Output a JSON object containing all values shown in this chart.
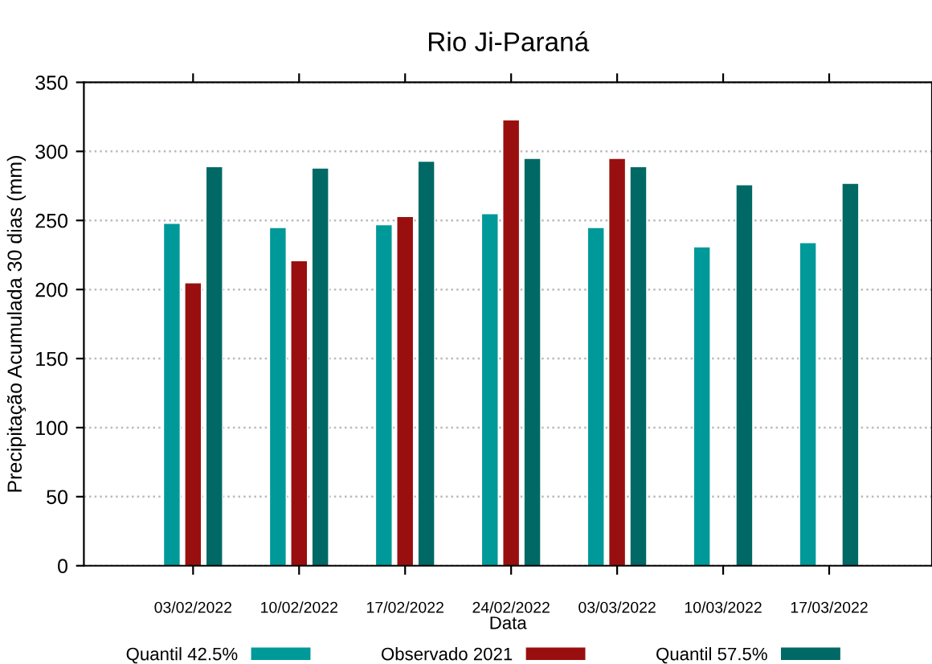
{
  "chart_data": {
    "type": "bar",
    "title": "Rio Ji-Paraná",
    "xlabel": "Data",
    "ylabel": "Precipitação Acumulada 30 dias (mm)",
    "categories": [
      "03/02/2022",
      "10/02/2022",
      "17/02/2022",
      "24/02/2022",
      "03/03/2022",
      "10/03/2022",
      "17/03/2022"
    ],
    "series": [
      {
        "name": "Quantil 42.5%",
        "color": "#009999",
        "values": [
          248,
          245,
          247,
          255,
          245,
          231,
          234
        ]
      },
      {
        "name": "Observado 2021",
        "color": "#990f0f",
        "values": [
          205,
          221,
          253,
          323,
          295,
          null,
          null
        ]
      },
      {
        "name": "Quantil 57.5%",
        "color": "#006966",
        "values": [
          289,
          288,
          293,
          295,
          289,
          276,
          277
        ]
      }
    ],
    "ylim": [
      0,
      350
    ],
    "yticks": [
      0,
      50,
      100,
      150,
      200,
      250,
      300,
      350
    ],
    "grid": "y",
    "legend": "bottom"
  }
}
